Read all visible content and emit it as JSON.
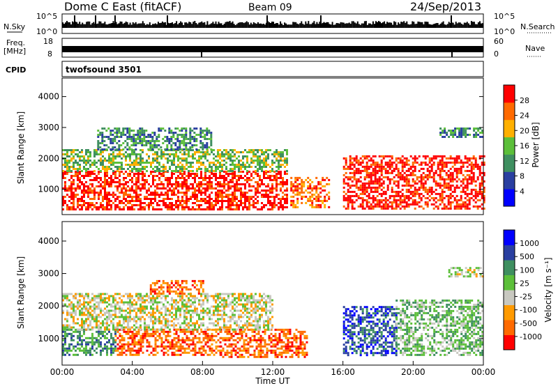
{
  "header": {
    "title": "Dome C East (fitACF)",
    "beam": "Beam 09",
    "date": "24/Sep/2013"
  },
  "top_panels": {
    "nsky_label": "N.Sky",
    "nsearch_label": "N.Search",
    "freq_label_line1": "Freq.",
    "freq_label_line2": "[MHz]",
    "nave_label": "Nave",
    "cpid_label": "CPID",
    "cpid_value": "twofsound 3501",
    "noise_ticks": [
      "10^5",
      "10^0"
    ],
    "freq_ticks": [
      "18",
      "8"
    ],
    "nave_ticks": [
      "60",
      "0"
    ]
  },
  "colors": {
    "power": [
      "#0000ff",
      "#2a3fa0",
      "#3f8f60",
      "#5cbf3a",
      "#ffb000",
      "#ff6a00",
      "#ff0000"
    ],
    "velocity": [
      "#ff0000",
      "#ff6a00",
      "#ff9a00",
      "#c8c8c0",
      "#5cbf3a",
      "#3f8f60",
      "#2a3fa0",
      "#0000ff"
    ]
  },
  "chart_data": [
    {
      "type": "heatmap",
      "name": "power",
      "ylabel": "Slant Range [km]",
      "y_ticks": [
        "1000",
        "2000",
        "3000",
        "4000"
      ],
      "ylim": [
        180,
        4600
      ],
      "colorbar_label": "Power [dB]",
      "colorbar_ticks": [
        "28",
        "24",
        "20",
        "16",
        "12",
        "8",
        "4"
      ],
      "colorbar_range": [
        0,
        32
      ],
      "regions": [
        {
          "x0": 0.0,
          "x1": 12.8,
          "y0": 350,
          "y1": 1600,
          "level": 6
        },
        {
          "x0": 0.0,
          "x1": 12.8,
          "y0": 1600,
          "y1": 2300,
          "level": 3
        },
        {
          "x0": 2.0,
          "x1": 8.5,
          "y0": 2300,
          "y1": 3000,
          "level": 2
        },
        {
          "x0": 13.0,
          "x1": 15.2,
          "y0": 400,
          "y1": 1400,
          "level": 5
        },
        {
          "x0": 16.0,
          "x1": 24.0,
          "y0": 400,
          "y1": 2100,
          "level": 6
        },
        {
          "x0": 21.5,
          "x1": 24.0,
          "y0": 2700,
          "y1": 3000,
          "level": 2
        }
      ]
    },
    {
      "type": "heatmap",
      "name": "velocity",
      "xlabel": "Time UT",
      "ylabel": "Slant Range [km]",
      "x_ticks": [
        "00:00",
        "04:00",
        "08:00",
        "12:00",
        "16:00",
        "20:00",
        "00:00"
      ],
      "y_ticks": [
        "1000",
        "2000",
        "3000",
        "4000"
      ],
      "ylim": [
        180,
        4600
      ],
      "colorbar_label": "Velocity [m s⁻¹]",
      "colorbar_ticks": [
        "1000",
        "500",
        "100",
        "25",
        "-25",
        "-100",
        "-500",
        "-1000"
      ],
      "regions": [
        {
          "x0": 0.0,
          "x1": 3.0,
          "y0": 500,
          "y1": 1300,
          "level": 5
        },
        {
          "x0": 3.0,
          "x1": 9.0,
          "y0": 500,
          "y1": 1300,
          "level": 1
        },
        {
          "x0": 9.0,
          "x1": 14.0,
          "y0": 400,
          "y1": 1300,
          "level": 1
        },
        {
          "x0": 0.0,
          "x1": 12.0,
          "y0": 1300,
          "y1": 2400,
          "level": 3
        },
        {
          "x0": 5.0,
          "x1": 8.0,
          "y0": 2400,
          "y1": 2800,
          "level": 1
        },
        {
          "x0": 16.0,
          "x1": 19.0,
          "y0": 500,
          "y1": 2000,
          "level": 6
        },
        {
          "x0": 19.0,
          "x1": 24.0,
          "y0": 500,
          "y1": 2200,
          "level": 4
        },
        {
          "x0": 22.0,
          "x1": 24.0,
          "y0": 2900,
          "y1": 3200,
          "level": 3
        }
      ]
    }
  ]
}
